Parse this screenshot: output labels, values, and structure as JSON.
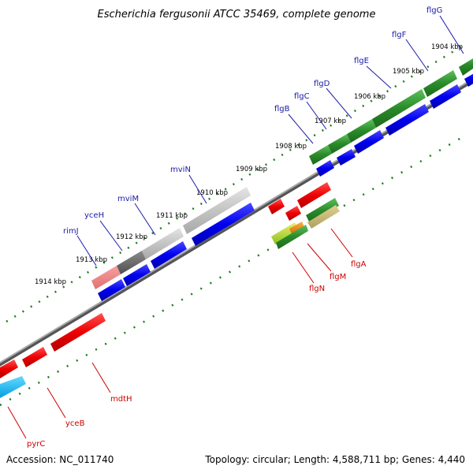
{
  "title": "Escherichia fergusonii ATCC 35469, complete genome",
  "footer": {
    "accession": "Accession: NC_011740",
    "topology": "Topology: circular; Length: 4,588,711 bp; Genes: 4,440"
  },
  "kbp_labels": [
    "1904 kbp",
    "1905 kbp",
    "1906 kbp",
    "1907 kbp",
    "1908 kbp",
    "1909 kbp",
    "1910 kbp",
    "1911 kbp",
    "1912 kbp",
    "1913 kbp",
    "1914 kbp"
  ],
  "fwd_genes": [
    "flgG",
    "flgF",
    "flgE",
    "flgD",
    "flgC",
    "flgB",
    "mviN",
    "mviM",
    "yceH",
    "rimJ"
  ],
  "rev_genes": [
    "flgA",
    "flgM",
    "flgN",
    "mdtH",
    "yceB",
    "pyrC"
  ],
  "colors": {
    "cds_fwd": "#0000ee",
    "cds_rev": "#ee0000",
    "flagella": "#2a8a2a",
    "hypothetical": "#c8c8c8",
    "backbone": "#888888",
    "tick": "#1e7a1e"
  }
}
